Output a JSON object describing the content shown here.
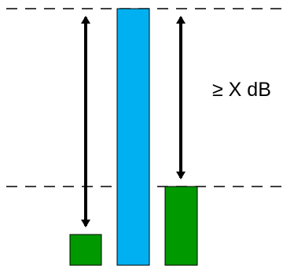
{
  "annotation": {
    "label": "≥ X dB"
  },
  "colors": {
    "background": "#ffffff",
    "line": "#000000",
    "blue_bar": "#00b0f0",
    "green_bar": "#009900"
  }
}
